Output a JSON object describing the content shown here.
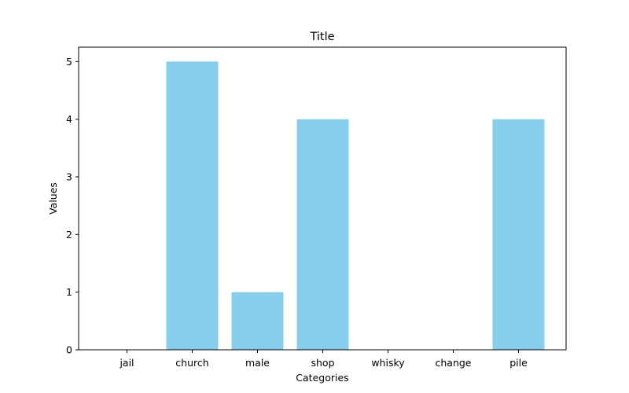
{
  "chart_data": {
    "type": "bar",
    "title": "Title",
    "xlabel": "Categories",
    "ylabel": "Values",
    "categories": [
      "jail",
      "church",
      "male",
      "shop",
      "whisky",
      "change",
      "pile"
    ],
    "values": [
      0,
      5,
      1,
      4,
      0,
      0,
      4
    ],
    "ylim": [
      0,
      5.25
    ],
    "yticks": [
      0,
      1,
      2,
      3,
      4,
      5
    ],
    "grid": false,
    "legend": false,
    "bar_color": "#87CEEB"
  }
}
